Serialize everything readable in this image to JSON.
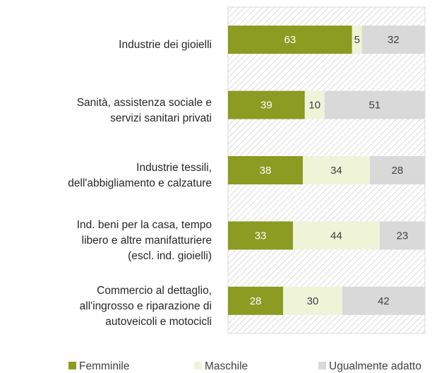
{
  "chart_data": {
    "type": "bar",
    "orientation": "horizontal",
    "stacked": true,
    "categories": [
      "Industrie dei gioielli",
      "Sanità, assistenza sociale e\nservizi sanitari privati",
      "Industrie tessili,\ndell'abbigliamento e calzature",
      "Ind. beni per la casa, tempo\nlibero e altre manifatturiere\n(escl. ind. gioielli)",
      "Commercio al dettaglio,\nall'ingrosso e riparazione di\nautoveicoli e motocicli"
    ],
    "series": [
      {
        "name": "Femminile",
        "color": "#8c9b22",
        "label_color": "#ffffff",
        "values": [
          63,
          39,
          38,
          33,
          28
        ]
      },
      {
        "name": "Maschile",
        "color": "#eff4d9",
        "label_color": "#404040",
        "values": [
          5,
          10,
          34,
          44,
          30
        ]
      },
      {
        "name": "Ugualmente adatto",
        "color": "#d9d9d9",
        "label_color": "#404040",
        "values": [
          32,
          51,
          28,
          23,
          42
        ]
      }
    ],
    "xlim": [
      0,
      100
    ],
    "legend": "bottom"
  }
}
